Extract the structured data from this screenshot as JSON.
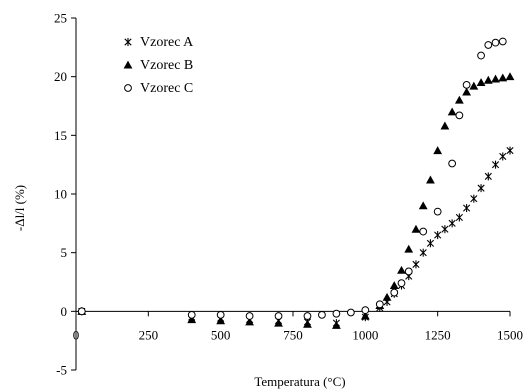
{
  "chart_data": {
    "type": "scatter",
    "xlabel": "Temperatura (°C)",
    "ylabel": "-Δl/l (%)",
    "xlim": [
      0,
      1500
    ],
    "ylim": [
      -5,
      25
    ],
    "xticks": [
      0,
      250,
      500,
      750,
      1000,
      1250,
      1500
    ],
    "yticks": [
      -5,
      0,
      5,
      10,
      15,
      20,
      25
    ],
    "grid": false,
    "legend_position": "top-left",
    "series": [
      {
        "name": "Vzorec A",
        "marker": "star",
        "x": [
          20,
          400,
          500,
          600,
          700,
          800,
          900,
          1000,
          1050,
          1075,
          1100,
          1125,
          1150,
          1175,
          1200,
          1225,
          1250,
          1275,
          1300,
          1325,
          1350,
          1375,
          1400,
          1425,
          1450,
          1475,
          1500
        ],
        "y": [
          0,
          -0.5,
          -0.6,
          -0.7,
          -0.8,
          -0.9,
          -1.0,
          -0.5,
          0.3,
          0.8,
          1.5,
          2.2,
          3.0,
          4.0,
          5.0,
          5.8,
          6.5,
          7.0,
          7.5,
          8.0,
          8.8,
          9.6,
          10.5,
          11.5,
          12.5,
          13.2,
          13.7
        ]
      },
      {
        "name": "Vzorec B",
        "marker": "triangle",
        "x": [
          20,
          400,
          500,
          600,
          700,
          800,
          900,
          1000,
          1050,
          1075,
          1100,
          1125,
          1150,
          1175,
          1200,
          1225,
          1250,
          1275,
          1300,
          1325,
          1350,
          1375,
          1400,
          1425,
          1450,
          1475,
          1500
        ],
        "y": [
          0,
          -0.7,
          -0.8,
          -0.9,
          -1.0,
          -1.1,
          -1.2,
          -0.4,
          0.5,
          1.2,
          2.2,
          3.5,
          5.3,
          7.0,
          9.0,
          11.2,
          13.7,
          15.8,
          17.0,
          18.0,
          18.7,
          19.2,
          19.5,
          19.7,
          19.8,
          19.9,
          20.0
        ]
      },
      {
        "name": "Vzorec C",
        "marker": "circle",
        "x": [
          20,
          400,
          500,
          600,
          700,
          800,
          850,
          900,
          950,
          1000,
          1050,
          1100,
          1125,
          1150,
          1200,
          1250,
          1300,
          1325,
          1350,
          1400,
          1425,
          1450,
          1475
        ],
        "y": [
          0,
          -0.3,
          -0.3,
          -0.4,
          -0.4,
          -0.4,
          -0.3,
          -0.2,
          -0.1,
          0.1,
          0.6,
          1.6,
          2.4,
          3.4,
          6.8,
          8.5,
          12.6,
          16.7,
          19.3,
          21.8,
          22.7,
          22.9,
          23.0
        ]
      }
    ]
  }
}
